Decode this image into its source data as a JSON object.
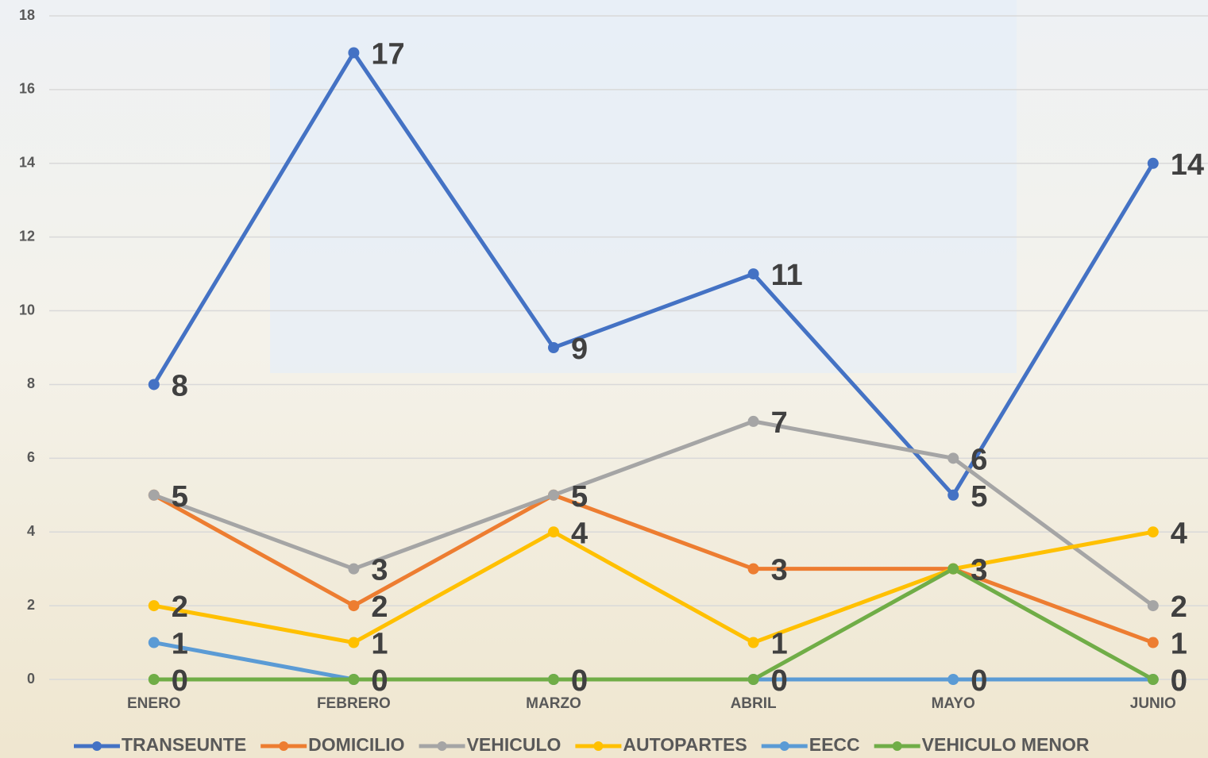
{
  "chart_data": {
    "type": "line",
    "categories": [
      "ENERO",
      "FEBRERO",
      "MARZO",
      "ABRIL",
      "MAYO",
      "JUNIO"
    ],
    "series": [
      {
        "name": "TRANSEUNTE",
        "color": "#4472c4",
        "values": [
          8,
          17,
          9,
          11,
          5,
          14
        ]
      },
      {
        "name": "DOMICILIO",
        "color": "#ed7d31",
        "values": [
          5,
          2,
          5,
          3,
          3,
          1
        ]
      },
      {
        "name": "VEHICULO",
        "color": "#a5a5a5",
        "values": [
          5,
          3,
          5,
          7,
          6,
          2
        ]
      },
      {
        "name": "AUTOPARTES",
        "color": "#ffc000",
        "values": [
          2,
          1,
          4,
          1,
          3,
          4
        ]
      },
      {
        "name": "EECC",
        "color": "#5b9bd5",
        "values": [
          1,
          0,
          0,
          0,
          0,
          0
        ]
      },
      {
        "name": "VEHICULO MENOR",
        "color": "#70ad47",
        "values": [
          0,
          0,
          0,
          0,
          3,
          0
        ]
      }
    ],
    "ylim": [
      0,
      18
    ],
    "yticks": [
      0,
      2,
      4,
      6,
      8,
      10,
      12,
      14,
      16,
      18
    ],
    "grid": true,
    "legend": "bottom"
  }
}
